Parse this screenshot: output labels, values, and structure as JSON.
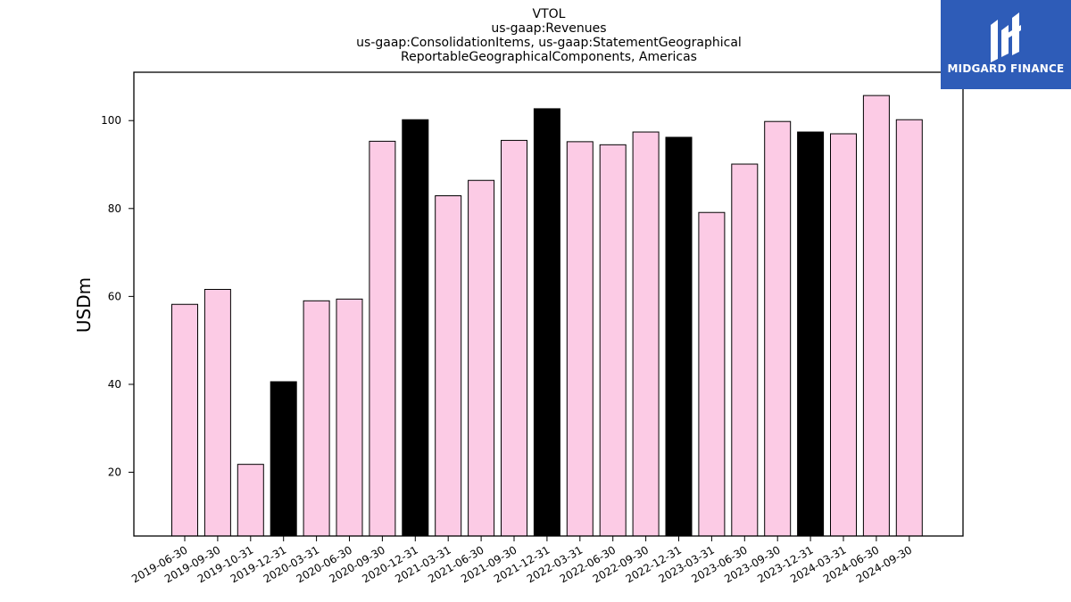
{
  "brand": {
    "name": "MIDGARD FINANCE",
    "bg_color": "#2e5cb8",
    "icon": "midgard-logo-icon"
  },
  "chart_data": {
    "type": "bar",
    "title_lines": [
      "VTOL",
      "us-gaap:Revenues",
      "us-gaap:ConsolidationItems, us-gaap:StatementGeographical",
      "ReportableGeographicalComponents, Americas"
    ],
    "xlabel": "",
    "ylabel": "USDm",
    "ylim": [
      5.5,
      111
    ],
    "yticks": [
      20,
      40,
      60,
      80,
      100
    ],
    "grid": false,
    "categories": [
      "2019-06-30",
      "2019-09-30",
      "2019-10-31",
      "2019-12-31",
      "2020-03-31",
      "2020-06-30",
      "2020-09-30",
      "2020-12-31",
      "2021-03-31",
      "2021-06-30",
      "2021-09-30",
      "2021-12-31",
      "2022-03-31",
      "2022-06-30",
      "2022-09-30",
      "2022-12-31",
      "2023-03-31",
      "2023-06-30",
      "2023-09-30",
      "2023-12-31",
      "2024-03-31",
      "2024-06-30",
      "2024-09-30"
    ],
    "values": [
      58.2,
      61.6,
      21.8,
      40.6,
      59.0,
      59.4,
      95.3,
      100.2,
      82.9,
      86.4,
      95.5,
      102.7,
      95.2,
      94.5,
      97.4,
      96.2,
      79.1,
      90.1,
      99.8,
      97.4,
      97.0,
      105.7,
      100.2
    ],
    "highlight": [
      false,
      false,
      false,
      true,
      false,
      false,
      false,
      true,
      false,
      false,
      false,
      true,
      false,
      false,
      false,
      true,
      false,
      false,
      false,
      true,
      false,
      false,
      false
    ],
    "colors": {
      "bar": "#fccbe5",
      "highlight": "#000000",
      "edge": "#000000"
    }
  }
}
